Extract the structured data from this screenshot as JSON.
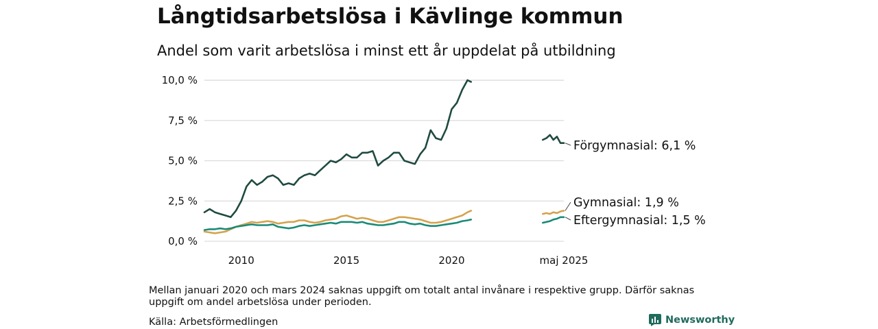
{
  "title": "Långtidsarbetslösa i Kävlinge kommun",
  "subtitle": "Andel som varit arbetslösa i minst ett år uppdelat på utbildning",
  "footnote": "Mellan januari 2020 och mars 2024 saknas uppgift om totalt antal invånare i respektive grupp. Därför saknas uppgift om andel arbetslösa under perioden.",
  "source": "Källa: Arbetsförmedlingen",
  "brand": {
    "name": "Newsworthy",
    "icon": "bar-chart-logo-icon",
    "color": "#1f6b5c"
  },
  "chart_data": {
    "type": "line",
    "y_tick_labels": [
      "0,0 %",
      "2,5 %",
      "5,0 %",
      "7,5 %",
      "10,0 %"
    ],
    "y_ticks": [
      0,
      2.5,
      5,
      7.5,
      10
    ],
    "ylim": [
      0,
      10.3
    ],
    "x_tick_labels": [
      "2010",
      "2015",
      "2020",
      "maj 2025"
    ],
    "x_ticks": [
      2010,
      2015,
      2020,
      2025.33
    ],
    "xlim": [
      2008.25,
      2025.33
    ],
    "grid": "horizontal",
    "series": [
      {
        "name": "Förgymnasial",
        "end_label": "Förgymnasial: 6,1 %",
        "color": "#1f4a40",
        "segments": [
          [
            [
              2008.25,
              1.8
            ],
            [
              2008.5,
              2.0
            ],
            [
              2008.75,
              1.8
            ],
            [
              2009.0,
              1.7
            ],
            [
              2009.25,
              1.6
            ],
            [
              2009.5,
              1.5
            ],
            [
              2009.75,
              1.9
            ],
            [
              2010.0,
              2.5
            ],
            [
              2010.25,
              3.4
            ],
            [
              2010.5,
              3.8
            ],
            [
              2010.75,
              3.5
            ],
            [
              2011.0,
              3.7
            ],
            [
              2011.25,
              4.0
            ],
            [
              2011.5,
              4.1
            ],
            [
              2011.75,
              3.9
            ],
            [
              2012.0,
              3.5
            ],
            [
              2012.25,
              3.6
            ],
            [
              2012.5,
              3.5
            ],
            [
              2012.75,
              3.9
            ],
            [
              2013.0,
              4.1
            ],
            [
              2013.25,
              4.2
            ],
            [
              2013.5,
              4.1
            ],
            [
              2013.75,
              4.4
            ],
            [
              2014.0,
              4.7
            ],
            [
              2014.25,
              5.0
            ],
            [
              2014.5,
              4.9
            ],
            [
              2014.75,
              5.1
            ],
            [
              2015.0,
              5.4
            ],
            [
              2015.25,
              5.2
            ],
            [
              2015.5,
              5.2
            ],
            [
              2015.75,
              5.5
            ],
            [
              2016.0,
              5.5
            ],
            [
              2016.25,
              5.6
            ],
            [
              2016.5,
              4.7
            ],
            [
              2016.75,
              5.0
            ],
            [
              2017.0,
              5.2
            ],
            [
              2017.25,
              5.5
            ],
            [
              2017.5,
              5.5
            ],
            [
              2017.75,
              5.0
            ],
            [
              2018.0,
              4.9
            ],
            [
              2018.25,
              4.8
            ],
            [
              2018.5,
              5.4
            ],
            [
              2018.75,
              5.8
            ],
            [
              2019.0,
              6.9
            ],
            [
              2019.25,
              6.4
            ],
            [
              2019.5,
              6.3
            ],
            [
              2019.75,
              7.0
            ],
            [
              2020.0,
              8.2
            ],
            [
              2020.25,
              8.6
            ],
            [
              2020.5,
              9.4
            ],
            [
              2020.75,
              10.0
            ],
            [
              2020.92,
              9.9
            ]
          ],
          [
            [
              2024.33,
              6.3
            ],
            [
              2024.5,
              6.4
            ],
            [
              2024.67,
              6.6
            ],
            [
              2024.83,
              6.3
            ],
            [
              2025.0,
              6.5
            ],
            [
              2025.17,
              6.1
            ],
            [
              2025.33,
              6.1
            ]
          ]
        ]
      },
      {
        "name": "Gymnasial",
        "end_label": "Gymnasial: 1,9 %",
        "color": "#d4a24c",
        "segments": [
          [
            [
              2008.25,
              0.6
            ],
            [
              2008.5,
              0.55
            ],
            [
              2008.75,
              0.5
            ],
            [
              2009.0,
              0.55
            ],
            [
              2009.25,
              0.6
            ],
            [
              2009.5,
              0.75
            ],
            [
              2009.75,
              0.9
            ],
            [
              2010.0,
              1.0
            ],
            [
              2010.25,
              1.1
            ],
            [
              2010.5,
              1.2
            ],
            [
              2010.75,
              1.15
            ],
            [
              2011.0,
              1.2
            ],
            [
              2011.25,
              1.25
            ],
            [
              2011.5,
              1.2
            ],
            [
              2011.75,
              1.1
            ],
            [
              2012.0,
              1.15
            ],
            [
              2012.25,
              1.2
            ],
            [
              2012.5,
              1.2
            ],
            [
              2012.75,
              1.3
            ],
            [
              2013.0,
              1.3
            ],
            [
              2013.25,
              1.2
            ],
            [
              2013.5,
              1.15
            ],
            [
              2013.75,
              1.2
            ],
            [
              2014.0,
              1.3
            ],
            [
              2014.25,
              1.35
            ],
            [
              2014.5,
              1.4
            ],
            [
              2014.75,
              1.55
            ],
            [
              2015.0,
              1.6
            ],
            [
              2015.25,
              1.5
            ],
            [
              2015.5,
              1.4
            ],
            [
              2015.75,
              1.45
            ],
            [
              2016.0,
              1.4
            ],
            [
              2016.25,
              1.3
            ],
            [
              2016.5,
              1.2
            ],
            [
              2016.75,
              1.2
            ],
            [
              2017.0,
              1.3
            ],
            [
              2017.25,
              1.4
            ],
            [
              2017.5,
              1.5
            ],
            [
              2017.75,
              1.5
            ],
            [
              2018.0,
              1.45
            ],
            [
              2018.25,
              1.4
            ],
            [
              2018.5,
              1.35
            ],
            [
              2018.75,
              1.25
            ],
            [
              2019.0,
              1.15
            ],
            [
              2019.25,
              1.15
            ],
            [
              2019.5,
              1.2
            ],
            [
              2019.75,
              1.3
            ],
            [
              2020.0,
              1.4
            ],
            [
              2020.25,
              1.5
            ],
            [
              2020.5,
              1.6
            ],
            [
              2020.75,
              1.8
            ],
            [
              2020.92,
              1.9
            ]
          ],
          [
            [
              2024.33,
              1.7
            ],
            [
              2024.5,
              1.75
            ],
            [
              2024.67,
              1.7
            ],
            [
              2024.83,
              1.8
            ],
            [
              2025.0,
              1.75
            ],
            [
              2025.17,
              1.85
            ],
            [
              2025.33,
              1.9
            ]
          ]
        ]
      },
      {
        "name": "Eftergymnasial",
        "end_label": "Eftergymnasial: 1,5 %",
        "color": "#1a8a78",
        "segments": [
          [
            [
              2008.25,
              0.7
            ],
            [
              2008.5,
              0.75
            ],
            [
              2008.75,
              0.75
            ],
            [
              2009.0,
              0.8
            ],
            [
              2009.25,
              0.75
            ],
            [
              2009.5,
              0.8
            ],
            [
              2009.75,
              0.9
            ],
            [
              2010.0,
              0.95
            ],
            [
              2010.25,
              1.0
            ],
            [
              2010.5,
              1.05
            ],
            [
              2010.75,
              1.0
            ],
            [
              2011.0,
              1.0
            ],
            [
              2011.25,
              1.0
            ],
            [
              2011.5,
              1.05
            ],
            [
              2011.75,
              0.9
            ],
            [
              2012.0,
              0.85
            ],
            [
              2012.25,
              0.8
            ],
            [
              2012.5,
              0.85
            ],
            [
              2012.75,
              0.95
            ],
            [
              2013.0,
              1.0
            ],
            [
              2013.25,
              0.95
            ],
            [
              2013.5,
              1.0
            ],
            [
              2013.75,
              1.05
            ],
            [
              2014.0,
              1.1
            ],
            [
              2014.25,
              1.15
            ],
            [
              2014.5,
              1.1
            ],
            [
              2014.75,
              1.2
            ],
            [
              2015.0,
              1.2
            ],
            [
              2015.25,
              1.2
            ],
            [
              2015.5,
              1.15
            ],
            [
              2015.75,
              1.2
            ],
            [
              2016.0,
              1.1
            ],
            [
              2016.25,
              1.05
            ],
            [
              2016.5,
              1.0
            ],
            [
              2016.75,
              1.0
            ],
            [
              2017.0,
              1.05
            ],
            [
              2017.25,
              1.1
            ],
            [
              2017.5,
              1.2
            ],
            [
              2017.75,
              1.2
            ],
            [
              2018.0,
              1.1
            ],
            [
              2018.25,
              1.05
            ],
            [
              2018.5,
              1.1
            ],
            [
              2018.75,
              1.0
            ],
            [
              2019.0,
              0.95
            ],
            [
              2019.25,
              0.95
            ],
            [
              2019.5,
              1.0
            ],
            [
              2019.75,
              1.05
            ],
            [
              2020.0,
              1.1
            ],
            [
              2020.25,
              1.15
            ],
            [
              2020.5,
              1.25
            ],
            [
              2020.75,
              1.3
            ],
            [
              2020.92,
              1.35
            ]
          ],
          [
            [
              2024.33,
              1.15
            ],
            [
              2024.5,
              1.2
            ],
            [
              2024.67,
              1.25
            ],
            [
              2024.83,
              1.35
            ],
            [
              2025.0,
              1.4
            ],
            [
              2025.17,
              1.5
            ],
            [
              2025.33,
              1.5
            ]
          ]
        ]
      }
    ]
  }
}
